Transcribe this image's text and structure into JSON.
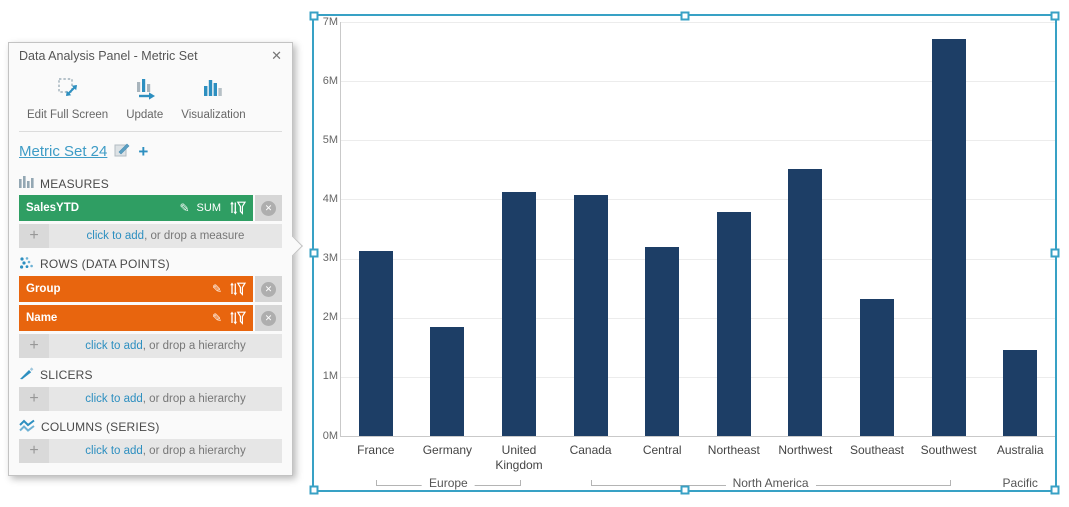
{
  "icons": {
    "close": "✕",
    "plus": "+",
    "pencil": "✎",
    "row_close": "✕"
  },
  "colors": {
    "accent_blue": "#2d8fc0",
    "measure_green": "#2f9e63",
    "hierarchy_orange": "#e8650e",
    "bar_navy": "#1d3e66",
    "selection_teal": "#38a1c5"
  },
  "panel": {
    "title": "Data Analysis Panel - Metric Set",
    "toolbar": [
      {
        "label": "Edit Full Screen"
      },
      {
        "label": "Update"
      },
      {
        "label": "Visualization"
      }
    ],
    "metric_set": {
      "name": "Metric Set 24"
    },
    "sections": {
      "measures": {
        "label": "MEASURES",
        "items": [
          {
            "name": "SalesYTD",
            "aggregator": "SUM"
          }
        ],
        "placeholder": {
          "link": "click to add",
          "rest": ", or drop a measure"
        }
      },
      "rows": {
        "label": "ROWS (DATA POINTS)",
        "items": [
          {
            "name": "Group"
          },
          {
            "name": "Name"
          }
        ],
        "placeholder": {
          "link": "click to add",
          "rest": ", or drop a hierarchy"
        }
      },
      "slicers": {
        "label": "SLICERS",
        "items": [],
        "placeholder": {
          "link": "click to add",
          "rest": ", or drop a hierarchy"
        }
      },
      "columns": {
        "label": "COLUMNS (SERIES)",
        "items": [],
        "placeholder": {
          "link": "click to add",
          "rest": ", or drop a hierarchy"
        }
      }
    }
  },
  "chart_data": {
    "type": "bar",
    "title": "",
    "series_name": "SalesYTD (SUM)",
    "categories": [
      "France",
      "Germany",
      "United Kingdom",
      "Canada",
      "Central",
      "Northeast",
      "Northwest",
      "Southeast",
      "Southwest",
      "Australia"
    ],
    "values": [
      3130000,
      1840000,
      4130000,
      4080000,
      3200000,
      3780000,
      4510000,
      2310000,
      6710000,
      1450000
    ],
    "groups": [
      {
        "label": "Europe",
        "from": 0,
        "to": 2
      },
      {
        "label": "North America",
        "from": 3,
        "to": 8
      },
      {
        "label": "Pacific",
        "from": 9,
        "to": 9
      }
    ],
    "xlabel": "",
    "ylabel": "",
    "ylim": [
      0,
      7000000
    ],
    "y_ticks": [
      {
        "value": 0,
        "label": "0M"
      },
      {
        "value": 1000000,
        "label": "1M"
      },
      {
        "value": 2000000,
        "label": "2M"
      },
      {
        "value": 3000000,
        "label": "3M"
      },
      {
        "value": 4000000,
        "label": "4M"
      },
      {
        "value": 5000000,
        "label": "5M"
      },
      {
        "value": 6000000,
        "label": "6M"
      },
      {
        "value": 7000000,
        "label": "7M"
      },
      {
        "value": 0,
        "label": "0M"
      }
    ],
    "grid": true,
    "legend": false,
    "bar_color": "#1d3e66"
  }
}
